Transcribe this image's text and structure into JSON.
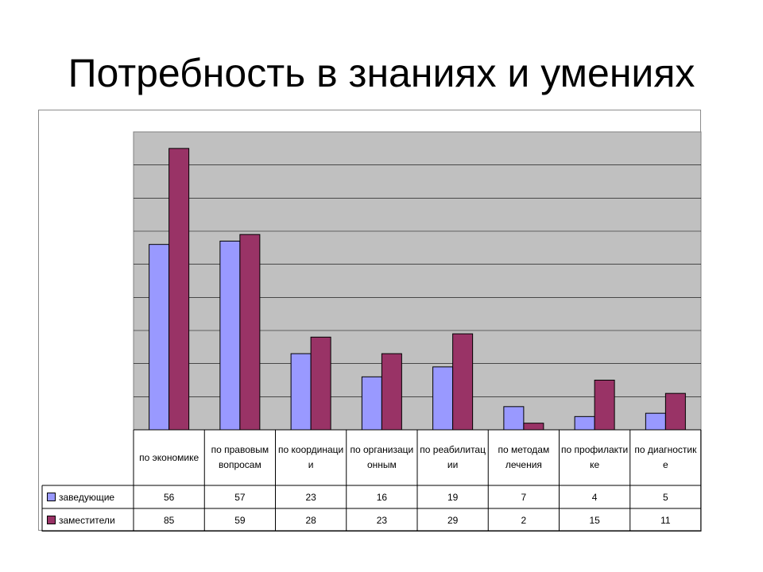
{
  "slide": {
    "title": "Потребность в знаниях и умениях"
  },
  "chart_data": {
    "type": "bar",
    "categories": [
      "по экономике",
      "по правовым вопросам",
      "по координаци и",
      "по организаци онным",
      "по реабилитац ии",
      "по методам лечения",
      "по профилакти ке",
      "по диагностик е"
    ],
    "series": [
      {
        "name": "заведующие",
        "values": [
          56,
          57,
          23,
          16,
          19,
          7,
          4,
          5
        ],
        "color": "#9999ff"
      },
      {
        "name": "заместители",
        "values": [
          85,
          59,
          28,
          23,
          29,
          2,
          15,
          11
        ],
        "color": "#993366"
      }
    ],
    "ylim": [
      0,
      90
    ],
    "grid": true,
    "plot_background": "#c0c0c0",
    "legend": "data-table-left"
  }
}
